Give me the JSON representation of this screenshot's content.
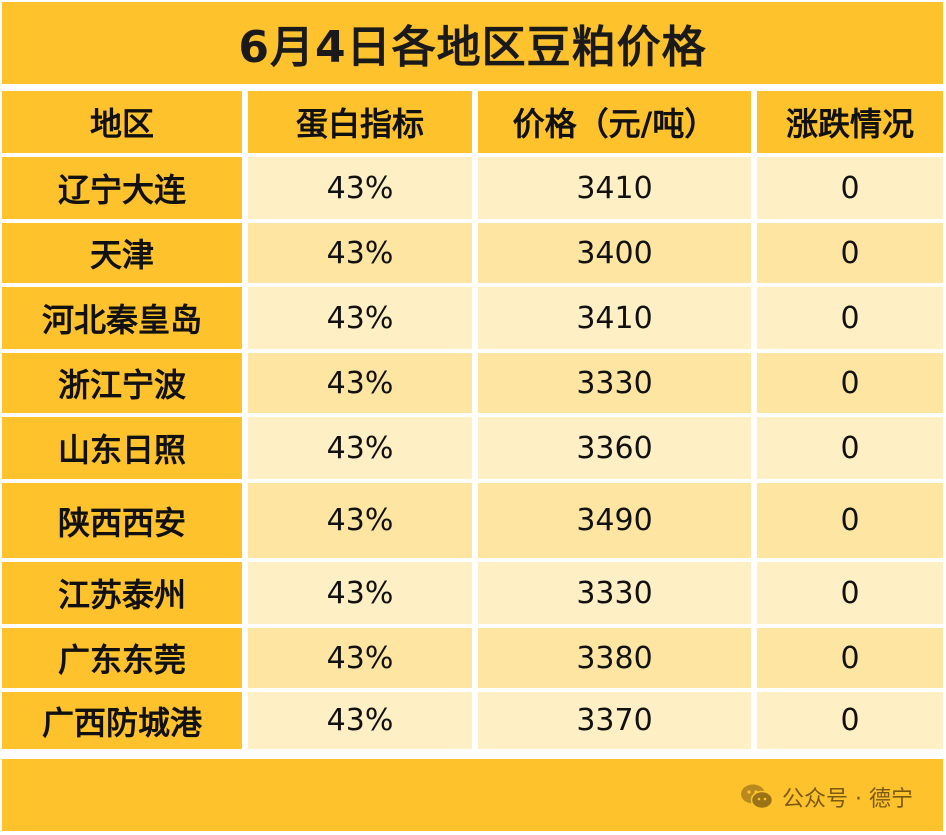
{
  "title": "6月4日各地区豆粕价格",
  "headers": [
    "地区",
    "蛋白指标",
    "价格（元/吨）",
    "涨跌情况"
  ],
  "rows": [
    {
      "region": "辽宁大连",
      "protein": "43%",
      "price": "3410",
      "change": "0"
    },
    {
      "region": "天津",
      "protein": "43%",
      "price": "3400",
      "change": "0"
    },
    {
      "region": "河北秦皇岛",
      "protein": "43%",
      "price": "3410",
      "change": "0"
    },
    {
      "region": "浙江宁波",
      "protein": "43%",
      "price": "3330",
      "change": "0"
    },
    {
      "region": "山东日照",
      "protein": "43%",
      "price": "3360",
      "change": "0"
    },
    {
      "region": "陕西西安",
      "protein": "43%",
      "price": "3490",
      "change": "0"
    },
    {
      "region": "江苏泰州",
      "protein": "43%",
      "price": "3330",
      "change": "0"
    },
    {
      "region": "广东东莞",
      "protein": "43%",
      "price": "3380",
      "change": "0"
    },
    {
      "region": "广西防城港",
      "protein": "43%",
      "price": "3370",
      "change": "0"
    }
  ],
  "watermark": {
    "text": "公众号 · 德宁",
    "icon": "wechat-icon"
  },
  "colors": {
    "header": "#FEC22C",
    "row_light": "#FEEFC4",
    "row_dark": "#FEE5A2"
  }
}
